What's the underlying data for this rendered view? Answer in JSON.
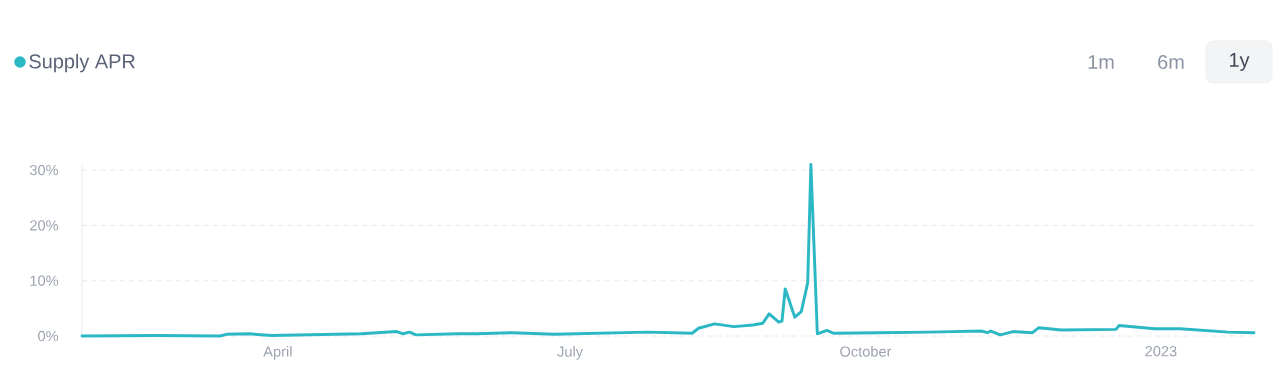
{
  "chart_data": {
    "type": "line",
    "x": [
      "2022-01-30",
      "2022-02-22",
      "2022-03-14",
      "2022-03-16",
      "2022-03-23",
      "2022-03-30",
      "2022-04-27",
      "2022-05-08",
      "2022-05-10",
      "2022-05-12",
      "2022-05-14",
      "2022-05-27",
      "2022-06-02",
      "2022-06-13",
      "2022-06-26",
      "2022-07-25",
      "2022-08-08",
      "2022-08-10",
      "2022-08-15",
      "2022-08-21",
      "2022-08-27",
      "2022-08-30",
      "2022-09-01",
      "2022-09-04",
      "2022-09-05",
      "2022-09-06",
      "2022-09-09",
      "2022-09-11",
      "2022-09-13",
      "2022-09-14",
      "2022-09-16",
      "2022-09-19",
      "2022-09-21",
      "2022-10-05",
      "2022-10-21",
      "2022-11-06",
      "2022-11-08",
      "2022-11-09",
      "2022-11-12",
      "2022-11-16",
      "2022-11-22",
      "2022-11-24",
      "2022-12-01",
      "2022-12-18",
      "2022-12-19",
      "2022-12-30",
      "2023-01-07",
      "2023-01-22",
      "2023-01-30"
    ],
    "series": [
      {
        "name": "Supply APR",
        "color": "#2bb8c4",
        "values": [
          0.0,
          0.1,
          0.0,
          0.3,
          0.4,
          0.1,
          0.4,
          0.8,
          0.4,
          0.7,
          0.2,
          0.4,
          0.4,
          0.6,
          0.3,
          0.7,
          0.5,
          1.4,
          2.2,
          1.7,
          2.0,
          2.3,
          4.0,
          2.5,
          2.7,
          8.5,
          3.4,
          4.4,
          9.6,
          31.0,
          0.4,
          1.0,
          0.5,
          0.6,
          0.7,
          0.9,
          0.6,
          0.9,
          0.2,
          0.8,
          0.6,
          1.5,
          1.1,
          1.2,
          1.9,
          1.3,
          1.3,
          0.7,
          0.6
        ]
      }
    ],
    "xlim": [
      "2022-01-30",
      "2023-01-30"
    ],
    "xticks": [
      {
        "value": "2022-04-01",
        "label": "April"
      },
      {
        "value": "2022-07-01",
        "label": "July"
      },
      {
        "value": "2022-10-01",
        "label": "October"
      },
      {
        "value": "2023-01-01",
        "label": "2023"
      }
    ],
    "ylim": [
      0,
      31
    ],
    "yticks": [
      {
        "value": 0,
        "label": "0%"
      },
      {
        "value": 10,
        "label": "10%"
      },
      {
        "value": 20,
        "label": "20%"
      },
      {
        "value": 30,
        "label": "30%"
      }
    ],
    "grid": "y",
    "legend": "top left",
    "annotations": [
      "1m",
      "6m",
      "1y"
    ]
  }
}
